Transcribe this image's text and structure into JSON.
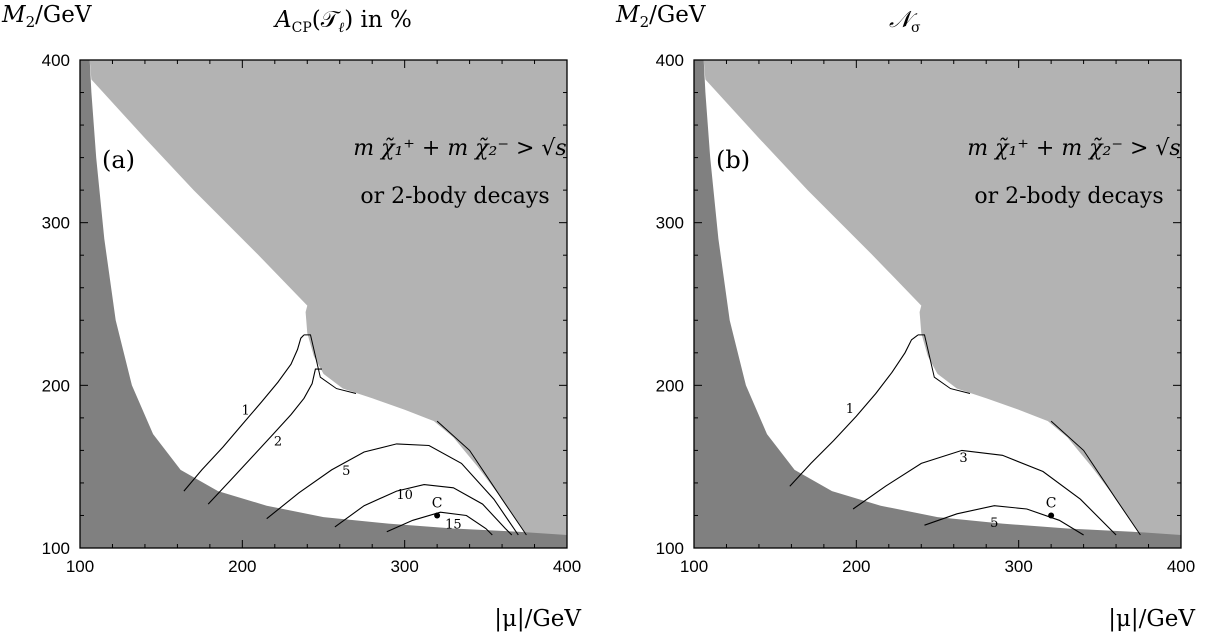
{
  "colors": {
    "forbidden_light": "#b3b3b3",
    "forbidden_dark": "#808080",
    "contour": "#000000",
    "frame": "#000000",
    "background": "#ffffff"
  },
  "chart_data": [
    {
      "type": "contour",
      "panel_label": "(a)",
      "ylabel_main": "M",
      "ylabel_sub": "2",
      "ylabel_unit": "/GeV",
      "title_main": "A",
      "title_sub": "CP",
      "title_arg": "(𝒯",
      "title_arg_sub": "ℓ",
      "title_tail": ") in %",
      "xlabel": "|μ|/GeV",
      "xlim": [
        100,
        400
      ],
      "ylim": [
        100,
        400
      ],
      "x_ticks": [
        "100",
        "200",
        "300",
        "400"
      ],
      "y_ticks": [
        "100",
        "200",
        "300",
        "400"
      ],
      "region_text_math": "m χ̃₁⁺ + m χ̃₂⁻ > √s",
      "region_text_line2": "or 2-body decays",
      "point": {
        "label": "C",
        "x": 320,
        "y": 120
      },
      "contours": [
        {
          "label": "1",
          "points": [
            [
              164,
              135
            ],
            [
              175,
              148
            ],
            [
              188,
              162
            ],
            [
              200,
              176
            ],
            [
              212,
              190
            ],
            [
              222,
              202
            ],
            [
              230,
              213
            ],
            [
              234,
              222
            ],
            [
              236,
              229
            ],
            [
              238,
              231
            ]
          ]
        },
        {
          "label": "2",
          "points": [
            [
              179,
              127
            ],
            [
              193,
              142
            ],
            [
              207,
              157
            ],
            [
              219,
              170
            ],
            [
              230,
              182
            ],
            [
              238,
              192
            ],
            [
              243,
              201
            ],
            [
              245,
              210
            ],
            [
              249,
              210
            ]
          ]
        },
        {
          "label": "5",
          "points": [
            [
              215,
              118
            ],
            [
              235,
              134
            ],
            [
              255,
              148
            ],
            [
              275,
              159
            ],
            [
              295,
              164
            ],
            [
              315,
              163
            ],
            [
              335,
              152
            ],
            [
              355,
              130
            ],
            [
              370,
              108
            ]
          ]
        },
        {
          "label": "10",
          "points": [
            [
              257,
              113
            ],
            [
              275,
              126
            ],
            [
              295,
              135
            ],
            [
              312,
              139
            ],
            [
              330,
              137
            ],
            [
              348,
              127
            ],
            [
              362,
              112
            ],
            [
              366,
              108
            ]
          ]
        },
        {
          "label": "15",
          "points": [
            [
              289,
              110
            ],
            [
              305,
              117
            ],
            [
              322,
              122
            ],
            [
              338,
              120
            ],
            [
              350,
              112
            ],
            [
              354,
              108
            ]
          ]
        }
      ]
    },
    {
      "type": "contour",
      "panel_label": "(b)",
      "ylabel_main": "M",
      "ylabel_sub": "2",
      "ylabel_unit": "/GeV",
      "title_main": "𝒩",
      "title_sub": "σ",
      "xlabel": "|μ|/GeV",
      "xlim": [
        100,
        400
      ],
      "ylim": [
        100,
        400
      ],
      "x_ticks": [
        "100",
        "200",
        "300",
        "400"
      ],
      "y_ticks": [
        "100",
        "200",
        "300",
        "400"
      ],
      "region_text_math": "m χ̃₁⁺ + m χ̃₂⁻ > √s",
      "region_text_line2": "or 2-body decays",
      "point": {
        "label": "C",
        "x": 320,
        "y": 120
      },
      "contours": [
        {
          "label": "1",
          "points": [
            [
              159,
              138
            ],
            [
              172,
              152
            ],
            [
              186,
              166
            ],
            [
              200,
              181
            ],
            [
              212,
              195
            ],
            [
              222,
              208
            ],
            [
              230,
              220
            ],
            [
              234,
              228
            ],
            [
              238,
              231
            ]
          ]
        },
        {
          "label": "3",
          "points": [
            [
              198,
              124
            ],
            [
              218,
              138
            ],
            [
              240,
              152
            ],
            [
              265,
              160
            ],
            [
              290,
              157
            ],
            [
              315,
              147
            ],
            [
              338,
              130
            ],
            [
              360,
              108
            ]
          ]
        },
        {
          "label": "5",
          "points": [
            [
              242,
              114
            ],
            [
              262,
              121
            ],
            [
              285,
              126
            ],
            [
              305,
              124
            ],
            [
              325,
              117
            ],
            [
              340,
              108
            ]
          ]
        }
      ]
    }
  ]
}
